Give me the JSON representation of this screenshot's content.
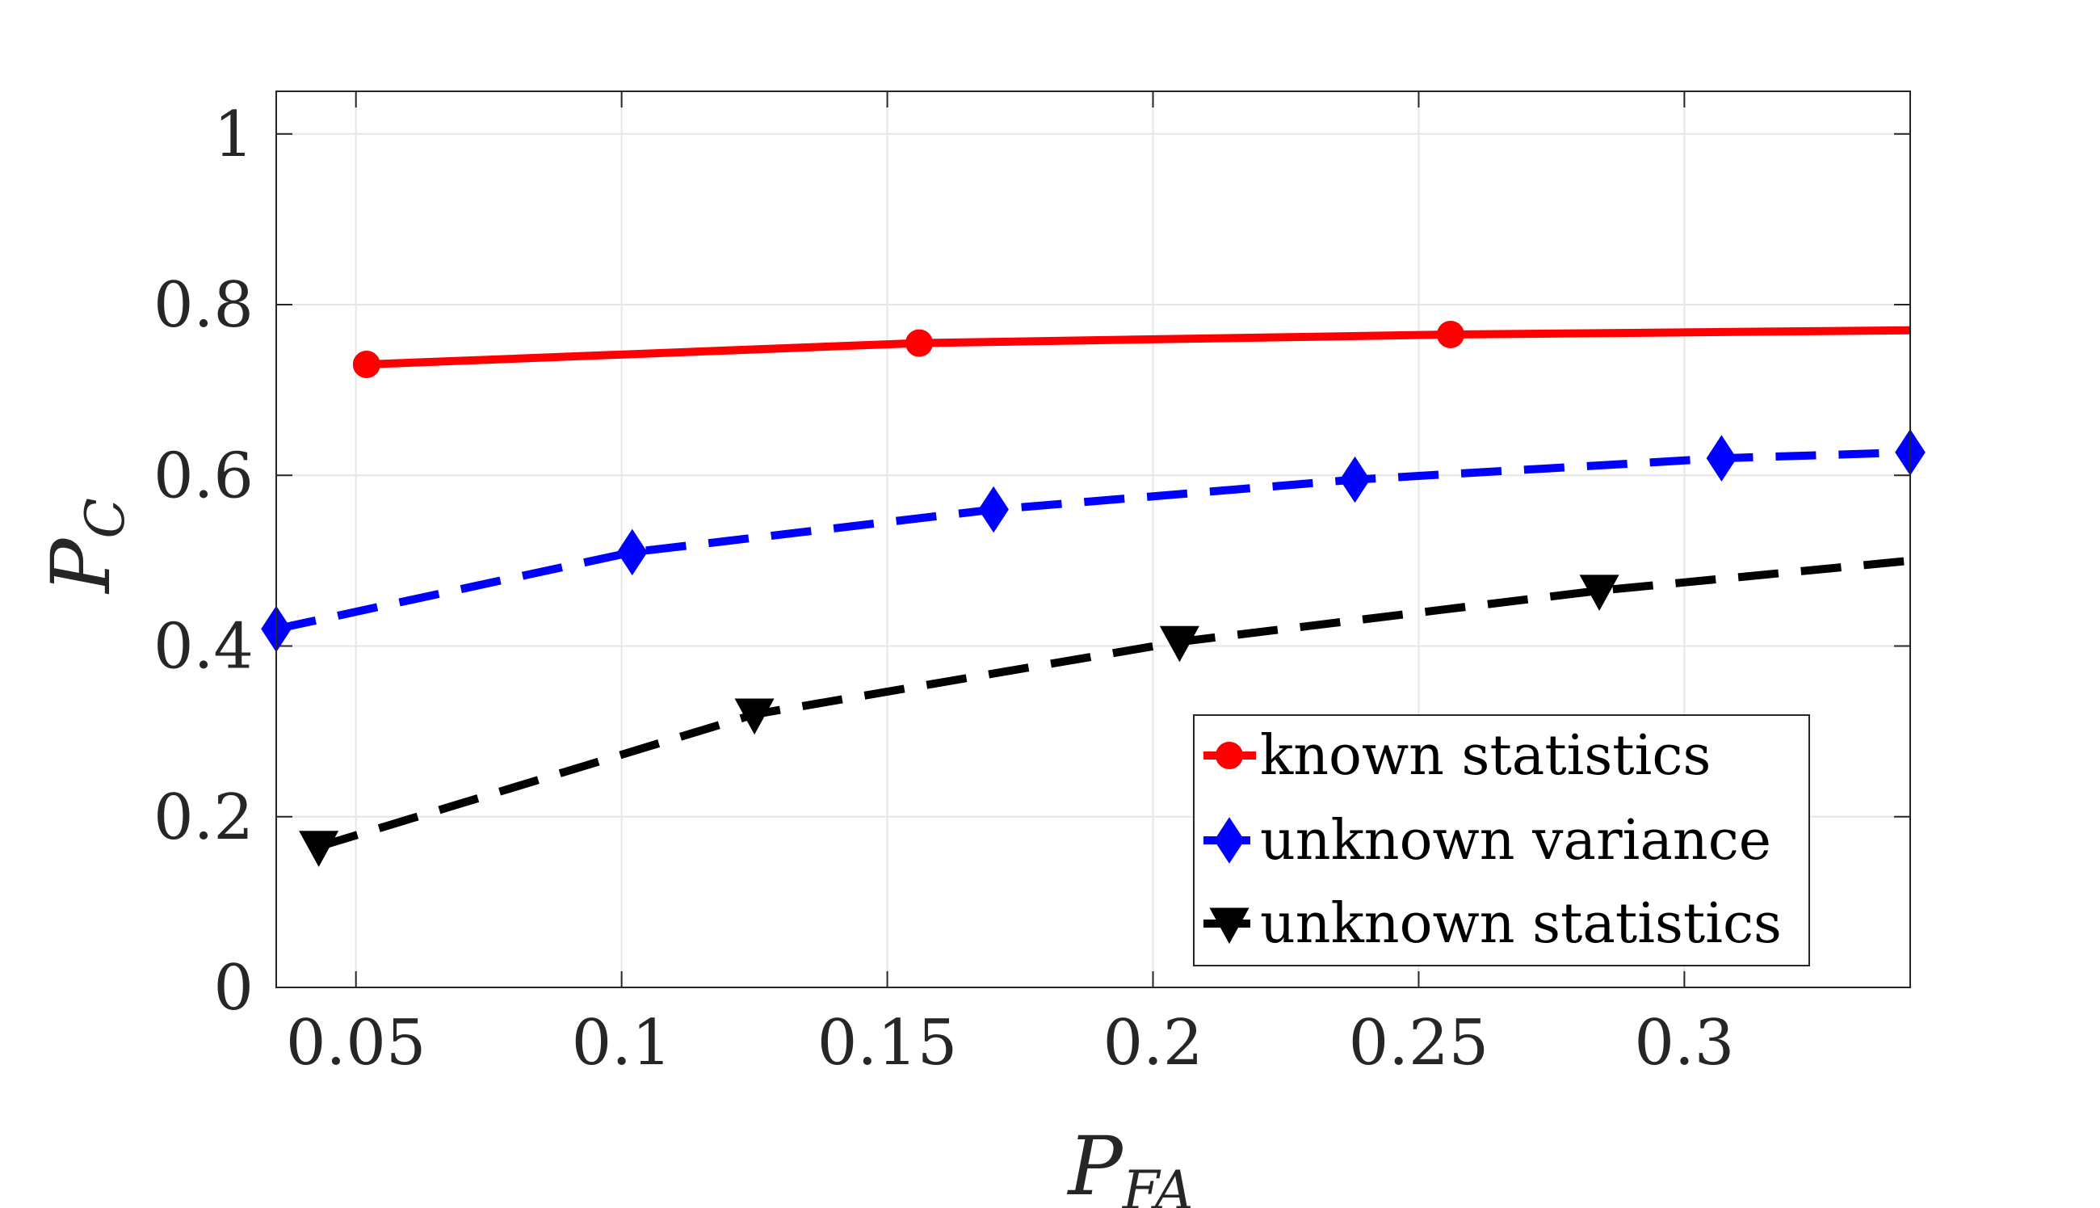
{
  "chart_data": {
    "type": "line",
    "title": "",
    "xlabel": {
      "main": "P",
      "sub": "FA"
    },
    "ylabel": {
      "main": "P",
      "sub": "C"
    },
    "xlim": [
      0.035,
      0.3425
    ],
    "ylim": [
      0,
      1.05
    ],
    "xticks": [
      0.05,
      0.1,
      0.15,
      0.2,
      0.25,
      0.3
    ],
    "xtick_labels": [
      "0.05",
      "0.1",
      "0.15",
      "0.2",
      "0.25",
      "0.3"
    ],
    "yticks": [
      0,
      0.2,
      0.4,
      0.6,
      0.8,
      1
    ],
    "ytick_labels": [
      "0",
      "0.2",
      "0.4",
      "0.6",
      "0.8",
      "1"
    ],
    "grid": true,
    "legend_position": "bottom-right",
    "series": [
      {
        "name": "known statistics",
        "color": "#ff0000",
        "line": "solid",
        "marker": "circle",
        "x": [
          0.052,
          0.156,
          0.256,
          0.3425
        ],
        "y": [
          0.73,
          0.755,
          0.765,
          0.77
        ],
        "markers": [
          true,
          true,
          true,
          false
        ]
      },
      {
        "name": "unknown variance",
        "color": "#0000ff",
        "line": "dashed",
        "marker": "diamond",
        "x": [
          0.035,
          0.102,
          0.17,
          0.238,
          0.307,
          0.3425
        ],
        "y": [
          0.42,
          0.51,
          0.56,
          0.595,
          0.62,
          0.627
        ],
        "markers": [
          true,
          true,
          true,
          true,
          true,
          true
        ]
      },
      {
        "name": "unknown statistics",
        "color": "#000000",
        "line": "dashed",
        "marker": "triangle-down",
        "x": [
          0.043,
          0.125,
          0.205,
          0.284,
          0.3425
        ],
        "y": [
          0.165,
          0.32,
          0.405,
          0.465,
          0.5
        ],
        "markers": [
          true,
          true,
          true,
          true,
          false
        ]
      }
    ]
  }
}
